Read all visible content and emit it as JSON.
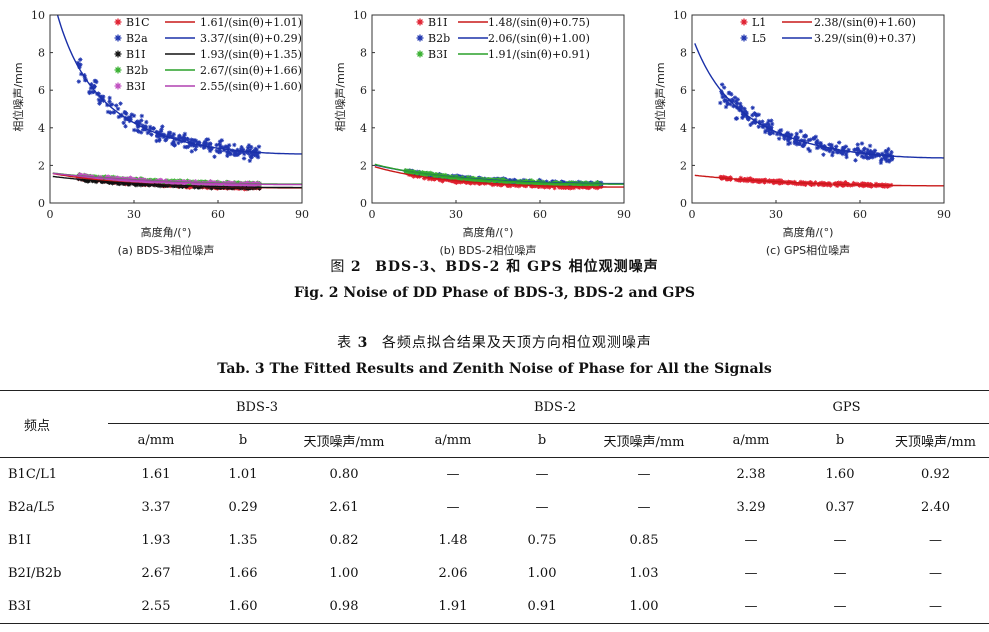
{
  "figure": {
    "caption_cn_prefix": "图",
    "caption_cn_num": "2",
    "caption_cn_text": "BDS-3、BDS-2 和 GPS 相位观测噪声",
    "caption_en": "Fig. 2   Noise of DD Phase of BDS-3, BDS-2 and GPS"
  },
  "chart_data": [
    {
      "type": "scatter",
      "caption": "(a) BDS-3相位噪声",
      "xlabel": "高度角/(°)",
      "ylabel": "相位噪声/mm",
      "xlim": [
        0,
        90
      ],
      "ylim": [
        0,
        10
      ],
      "xticks": [
        "0",
        "30",
        "60",
        "90"
      ],
      "yticks": [
        "0",
        "2",
        "4",
        "6",
        "8",
        "10"
      ],
      "legend_position": "top-right",
      "series": [
        {
          "name": "B1C",
          "color": "#e02030",
          "marker": "star",
          "fit": "1.61/(sin(θ)+1.01)",
          "a": 1.61,
          "b": 1.01,
          "line_color": "#c81818",
          "x_range": [
            10,
            75
          ]
        },
        {
          "name": "B2a",
          "color": "#2036b0",
          "marker": "star",
          "fit": "3.37/(sin(θ)+0.29)",
          "a": 3.37,
          "b": 0.29,
          "line_color": "#1a30a8",
          "x_range": [
            10,
            75
          ]
        },
        {
          "name": "B1I",
          "color": "#111111",
          "marker": "star",
          "fit": "1.93/(sin(θ)+1.35)",
          "a": 1.93,
          "b": 1.35,
          "line_color": "#111111",
          "x_range": [
            10,
            75
          ]
        },
        {
          "name": "B2b",
          "color": "#38b030",
          "marker": "star",
          "fit": "2.67/(sin(θ)+1.66)",
          "a": 2.67,
          "b": 1.66,
          "line_color": "#2aa02a",
          "x_range": [
            10,
            75
          ]
        },
        {
          "name": "B3I",
          "color": "#c050c0",
          "marker": "star",
          "fit": "2.55/(sin(θ)+1.60)",
          "a": 2.55,
          "b": 1.6,
          "line_color": "#b040b0",
          "x_range": [
            10,
            75
          ]
        }
      ]
    },
    {
      "type": "scatter",
      "caption": "(b) BDS-2相位噪声",
      "xlabel": "高度角/(°)",
      "ylabel": "相位噪声/mm",
      "xlim": [
        0,
        90
      ],
      "ylim": [
        0,
        10
      ],
      "xticks": [
        "0",
        "30",
        "60",
        "90"
      ],
      "yticks": [
        "0",
        "2",
        "4",
        "6",
        "8",
        "10"
      ],
      "legend_position": "top-left",
      "series": [
        {
          "name": "B1I",
          "color": "#e02030",
          "marker": "star",
          "fit": "1.48/(sin(θ)+0.75)",
          "a": 1.48,
          "b": 0.75,
          "line_color": "#c81818",
          "x_range": [
            12,
            82
          ]
        },
        {
          "name": "B2b",
          "color": "#2036b0",
          "marker": "star",
          "fit": "2.06/(sin(θ)+1.00)",
          "a": 2.06,
          "b": 1.0,
          "line_color": "#1a30a8",
          "x_range": [
            12,
            82
          ]
        },
        {
          "name": "B3I",
          "color": "#38b030",
          "marker": "star",
          "fit": "1.91/(sin(θ)+0.91)",
          "a": 1.91,
          "b": 0.91,
          "line_color": "#2aa02a",
          "x_range": [
            12,
            82
          ]
        }
      ]
    },
    {
      "type": "scatter",
      "caption": "(c) GPS相位噪声",
      "xlabel": "高度角/(°)",
      "ylabel": "相位噪声/mm",
      "xlim": [
        0,
        90
      ],
      "ylim": [
        0,
        10
      ],
      "xticks": [
        "0",
        "30",
        "60",
        "90"
      ],
      "yticks": [
        "0",
        "2",
        "4",
        "6",
        "8",
        "10"
      ],
      "legend_position": "top-left",
      "series": [
        {
          "name": "L1",
          "color": "#e02030",
          "marker": "star",
          "fit": "2.38/(sin(θ)+1.60)",
          "a": 2.38,
          "b": 1.6,
          "line_color": "#c81818",
          "x_range": [
            10,
            72
          ]
        },
        {
          "name": "L5",
          "color": "#2036b0",
          "marker": "star",
          "fit": "3.29/(sin(θ)+0.37)",
          "a": 3.29,
          "b": 0.37,
          "line_color": "#1a30a8",
          "x_range": [
            10,
            72
          ]
        }
      ]
    }
  ],
  "table": {
    "caption_cn_prefix": "表",
    "caption_cn_num": "3",
    "caption_cn_text": "各频点拟合结果及天顶方向相位观测噪声",
    "caption_en": "Tab. 3   The Fitted Results and Zenith Noise of Phase for All the Signals",
    "row_header": "频点",
    "groups": [
      "BDS-3",
      "BDS-2",
      "GPS"
    ],
    "subheaders": [
      "a/mm",
      "b",
      "天顶噪声/mm"
    ],
    "rows": [
      {
        "label": "B1C/L1",
        "cells": [
          "1.61",
          "1.01",
          "0.80",
          "—",
          "—",
          "—",
          "2.38",
          "1.60",
          "0.92"
        ]
      },
      {
        "label": "B2a/L5",
        "cells": [
          "3.37",
          "0.29",
          "2.61",
          "—",
          "—",
          "—",
          "3.29",
          "0.37",
          "2.40"
        ]
      },
      {
        "label": "B1I",
        "cells": [
          "1.93",
          "1.35",
          "0.82",
          "1.48",
          "0.75",
          "0.85",
          "—",
          "—",
          "—"
        ]
      },
      {
        "label": "B2I/B2b",
        "cells": [
          "2.67",
          "1.66",
          "1.00",
          "2.06",
          "1.00",
          "1.03",
          "—",
          "—",
          "—"
        ]
      },
      {
        "label": "B3I",
        "cells": [
          "2.55",
          "1.60",
          "0.98",
          "1.91",
          "0.91",
          "1.00",
          "—",
          "—",
          "—"
        ]
      }
    ]
  }
}
